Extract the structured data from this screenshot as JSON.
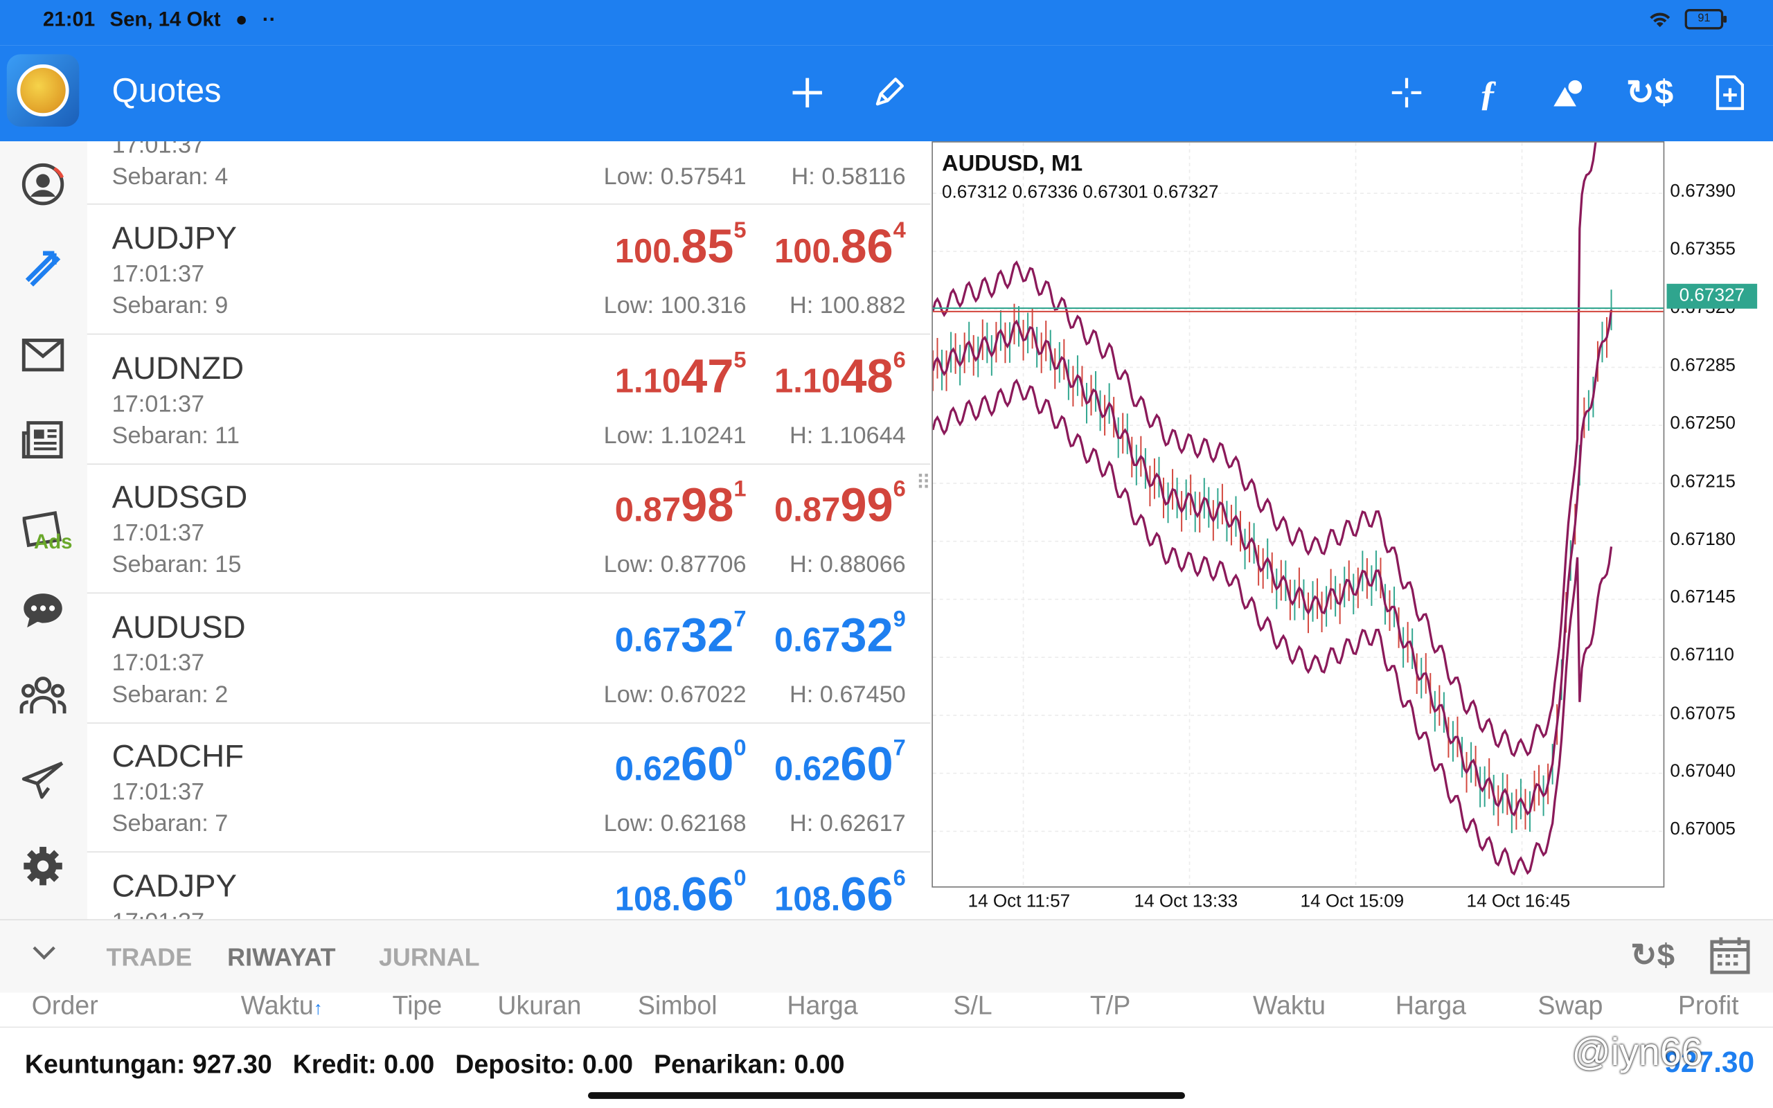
{
  "status": {
    "time": "21:01",
    "date": "Sen, 14 Okt",
    "battery": "91"
  },
  "toolbar": {
    "title": "Quotes"
  },
  "sidebar": {
    "ads_label": "Ads"
  },
  "top_partial": {
    "time": "17:01:37",
    "spread": "Sebaran: 4",
    "low": "Low: 0.57541",
    "high": "H: 0.58116"
  },
  "quotes": [
    {
      "symbol": "AUDJPY",
      "time": "17:01:37",
      "spread": "Sebaran: 9",
      "low": "Low: 100.316",
      "high": "H: 100.882",
      "bid": {
        "pre": "100.",
        "big": "85",
        "sup": "5"
      },
      "ask": {
        "pre": "100.",
        "big": "86",
        "sup": "4"
      },
      "color": "#d2453c"
    },
    {
      "symbol": "AUDNZD",
      "time": "17:01:37",
      "spread": "Sebaran: 11",
      "low": "Low: 1.10241",
      "high": "H: 1.10644",
      "bid": {
        "pre": "1.10",
        "big": "47",
        "sup": "5"
      },
      "ask": {
        "pre": "1.10",
        "big": "48",
        "sup": "6"
      },
      "color": "#d2453c"
    },
    {
      "symbol": "AUDSGD",
      "time": "17:01:37",
      "spread": "Sebaran: 15",
      "low": "Low: 0.87706",
      "high": "H: 0.88066",
      "bid": {
        "pre": "0.87",
        "big": "98",
        "sup": "1"
      },
      "ask": {
        "pre": "0.87",
        "big": "99",
        "sup": "6"
      },
      "color": "#d2453c"
    },
    {
      "symbol": "AUDUSD",
      "time": "17:01:37",
      "spread": "Sebaran: 2",
      "low": "Low: 0.67022",
      "high": "H: 0.67450",
      "bid": {
        "pre": "0.67",
        "big": "32",
        "sup": "7"
      },
      "ask": {
        "pre": "0.67",
        "big": "32",
        "sup": "9"
      },
      "color": "#1e7ff0"
    },
    {
      "symbol": "CADCHF",
      "time": "17:01:37",
      "spread": "Sebaran: 7",
      "low": "Low: 0.62168",
      "high": "H: 0.62617",
      "bid": {
        "pre": "0.62",
        "big": "60",
        "sup": "0"
      },
      "ask": {
        "pre": "0.62",
        "big": "60",
        "sup": "7"
      },
      "color": "#1e7ff0"
    },
    {
      "symbol": "CADJPY",
      "time": "17:01:37",
      "spread": "",
      "low": "",
      "high": "",
      "bid": {
        "pre": "108.",
        "big": "66",
        "sup": "0"
      },
      "ask": {
        "pre": "108.",
        "big": "66",
        "sup": "6"
      },
      "color": "#1e7ff0"
    }
  ],
  "chart": {
    "title": "AUDUSD, M1",
    "ohlc": "0.67312 0.67336 0.67301 0.67327",
    "y_ticks": [
      "0.67390",
      "0.67355",
      "0.67320",
      "0.67285",
      "0.67250",
      "0.67215",
      "0.67180",
      "0.67145",
      "0.67110",
      "0.67075",
      "0.67040",
      "0.67005"
    ],
    "current_price": "0.67327",
    "x_ticks": [
      "14 Oct 11:57",
      "14 Oct 13:33",
      "14 Oct 15:09",
      "14 Oct 16:45"
    ],
    "band_color": "#8b1a5a",
    "up_color": "#2fa58e",
    "down_color": "#d2453c"
  },
  "chart_data": {
    "type": "line",
    "title": "AUDUSD, M1",
    "ylim": [
      0.66985,
      0.67425
    ],
    "x": [
      "11:30",
      "11:45",
      "12:00",
      "12:15",
      "12:30",
      "12:45",
      "13:00",
      "13:15",
      "13:30",
      "13:45",
      "14:00",
      "14:15",
      "14:30",
      "14:45",
      "15:00",
      "15:15",
      "15:30",
      "15:45",
      "16:00",
      "16:15",
      "16:30",
      "16:45",
      "17:00",
      "17:01"
    ],
    "x_ticks": [
      "14 Oct 11:57",
      "14 Oct 13:33",
      "14 Oct 15:09",
      "14 Oct 16:45"
    ],
    "series": [
      {
        "values": [
          0.6729,
          0.673,
          0.67305,
          0.67315,
          0.673,
          0.6728,
          0.67265,
          0.67235,
          0.67215,
          0.6721,
          0.67205,
          0.6718,
          0.6716,
          0.6715,
          0.6716,
          0.6717,
          0.6713,
          0.67095,
          0.6706,
          0.6704,
          0.6703,
          0.6705,
          0.6725,
          0.67327
        ]
      }
    ]
  },
  "bottom": {
    "tabs": [
      "TRADE",
      "RIWAYAT",
      "JURNAL"
    ],
    "columns": [
      "Order",
      "Waktu",
      "Tipe",
      "Ukuran",
      "Simbol",
      "Harga",
      "S/L",
      "T/P",
      "Waktu",
      "Harga",
      "Swap",
      "Profit"
    ],
    "summary": {
      "keuntungan": "Keuntungan: 927.30",
      "kredit": "Kredit: 0.00",
      "deposito": "Deposito: 0.00",
      "penarikan": "Penarikan: 0.00"
    },
    "profit_value": "927.30",
    "watermark": "@iyn66"
  }
}
